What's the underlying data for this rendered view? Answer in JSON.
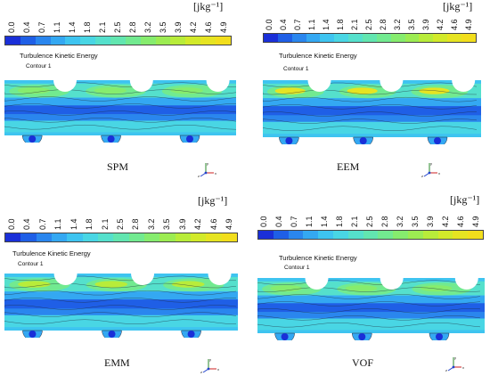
{
  "unit": "[jkg⁻¹]",
  "ticks": [
    "0.0",
    "0.4",
    "0.7",
    "1.1",
    "1.4",
    "1.8",
    "2.1",
    "2.5",
    "2.8",
    "3.2",
    "3.5",
    "3.9",
    "4.2",
    "4.6",
    "4.9"
  ],
  "colors": [
    "#1a2fd8",
    "#1f5fe6",
    "#2a86ee",
    "#34a8f2",
    "#3ec4f0",
    "#49d6e4",
    "#55e0cc",
    "#62e6b0",
    "#72ea90",
    "#86ec6e",
    "#9cec52",
    "#b8ec3a",
    "#d2ea2a",
    "#e6e422",
    "#f2de1c"
  ],
  "legend_title": "Turbulence Kinetic Energy",
  "legend_sub": "Contour 1",
  "panels": [
    {
      "label": "SPM"
    },
    {
      "label": "EEM"
    },
    {
      "label": "EMM"
    },
    {
      "label": "VOF"
    }
  ],
  "axis_letters": {
    "y": "y",
    "x": "x",
    "z": "z"
  }
}
